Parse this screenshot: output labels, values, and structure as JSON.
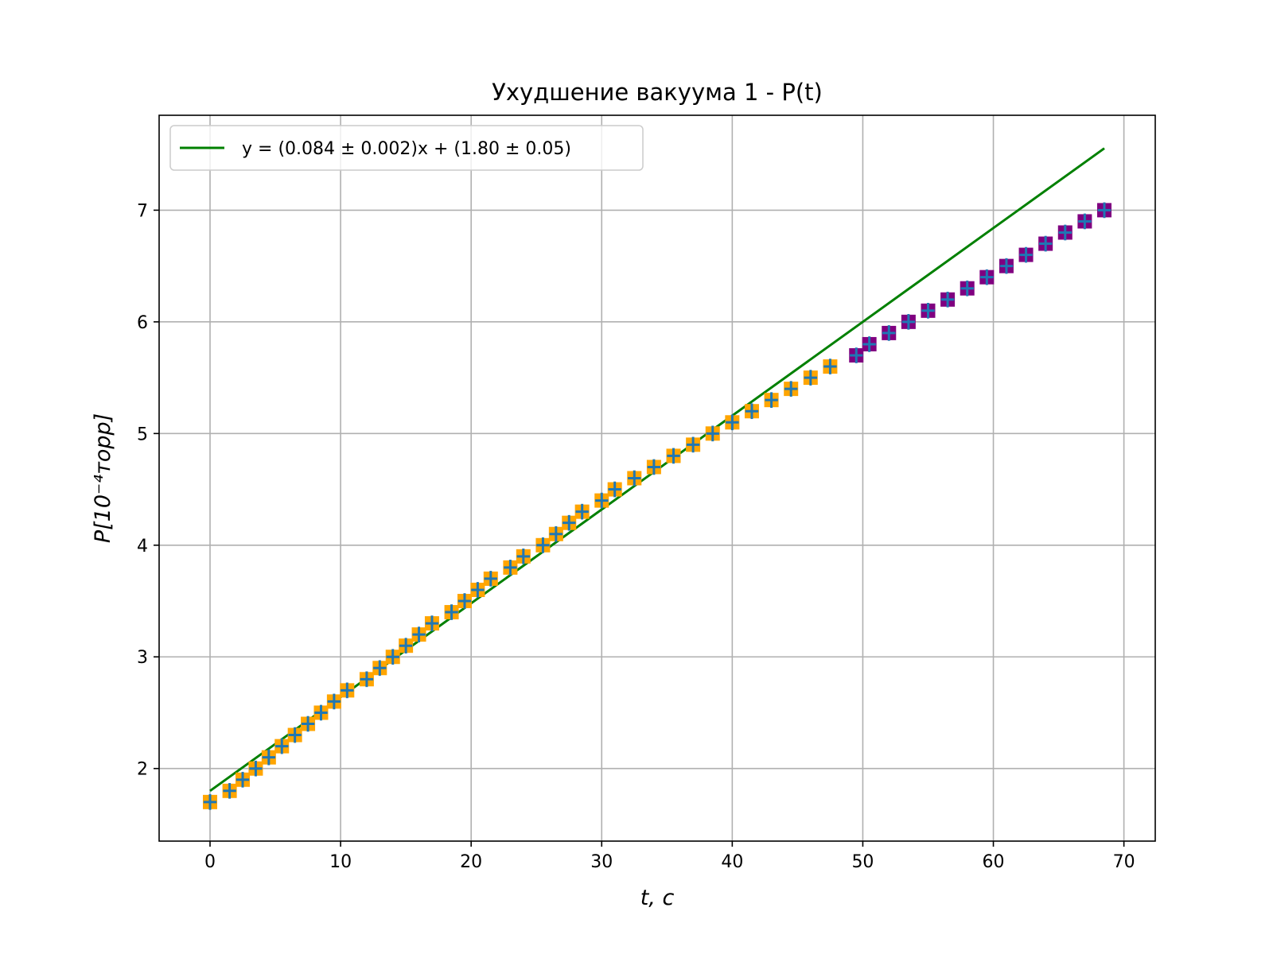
{
  "chart_data": {
    "type": "scatter",
    "title": "Ухудшение вакуума 1 - P(t)",
    "xlabel": "t, c",
    "ylabel": "P[10⁻⁴торр]",
    "xlim": [
      -3.9,
      72.4
    ],
    "ylim": [
      1.35,
      7.85
    ],
    "xticks": [
      0,
      10,
      20,
      30,
      40,
      50,
      60,
      70
    ],
    "yticks": [
      2,
      3,
      4,
      5,
      6,
      7
    ],
    "grid": true,
    "legend_position": "top-left",
    "series": [
      {
        "kind": "points",
        "color": "#ffa500",
        "error_color": "#1f77b4",
        "x_error": 0.5,
        "y_error": 0.07,
        "x": [
          0,
          1.5,
          2.5,
          3.5,
          4.5,
          5.5,
          6.5,
          7.5,
          8.5,
          9.5,
          10.5,
          12,
          13,
          14,
          15,
          16,
          17,
          18.5,
          19.5,
          20.5,
          21.5,
          23,
          24,
          25.5,
          26.5,
          27.5,
          28.5,
          30,
          31,
          32.5,
          34,
          35.5,
          37,
          38.5,
          40,
          41.5,
          43,
          44.5,
          46,
          47.5
        ],
        "y": [
          1.7,
          1.8,
          1.9,
          2.0,
          2.1,
          2.2,
          2.3,
          2.4,
          2.5,
          2.6,
          2.7,
          2.8,
          2.9,
          3.0,
          3.1,
          3.2,
          3.3,
          3.4,
          3.5,
          3.6,
          3.7,
          3.8,
          3.9,
          4.0,
          4.1,
          4.2,
          4.3,
          4.4,
          4.5,
          4.6,
          4.7,
          4.8,
          4.9,
          5.0,
          5.1,
          5.2,
          5.3,
          5.4,
          5.5,
          5.6
        ]
      },
      {
        "kind": "points",
        "color": "#800080",
        "error_color": "#1f77b4",
        "x_error": 0.5,
        "y_error": 0.07,
        "x": [
          49.5,
          50.5,
          52,
          53.5,
          55,
          56.5,
          58,
          59.5,
          61,
          62.5,
          64,
          65.5,
          67,
          68.5
        ],
        "y": [
          5.7,
          5.8,
          5.9,
          6.0,
          6.1,
          6.2,
          6.3,
          6.4,
          6.5,
          6.6,
          6.7,
          6.8,
          6.9,
          7.0
        ]
      },
      {
        "kind": "line",
        "name": "y = (0.084 ± 0.002)x + (1.80 ± 0.05)",
        "color": "#008000",
        "slope": 0.084,
        "intercept": 1.8,
        "x": [
          0,
          68.5
        ]
      }
    ]
  }
}
